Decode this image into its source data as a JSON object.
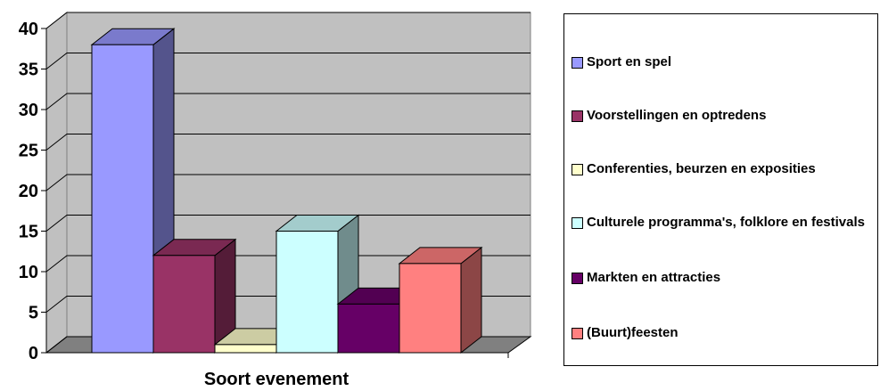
{
  "chart_data": {
    "type": "bar3d",
    "x_label": "Soort evenement",
    "series": [
      {
        "name": "Sport en spel",
        "color": "#9999ff",
        "values": [
          38
        ]
      },
      {
        "name": "Voorstellingen en optredens",
        "color": "#993366",
        "values": [
          12
        ]
      },
      {
        "name": "Conferenties, beurzen en exposities",
        "color": "#ffffcc",
        "values": [
          1
        ]
      },
      {
        "name": "Culturele programma's, folklore en festivals",
        "color": "#ccffff",
        "values": [
          15
        ]
      },
      {
        "name": "Markten en attracties",
        "color": "#660066",
        "values": [
          6
        ]
      },
      {
        "name": "(Buurt)feesten",
        "color": "#ff8080",
        "values": [
          11
        ]
      }
    ],
    "ylim": [
      0,
      40
    ],
    "yticks": [
      0,
      5,
      10,
      15,
      20,
      25,
      30,
      35,
      40
    ],
    "grid": true,
    "legend": "right"
  }
}
